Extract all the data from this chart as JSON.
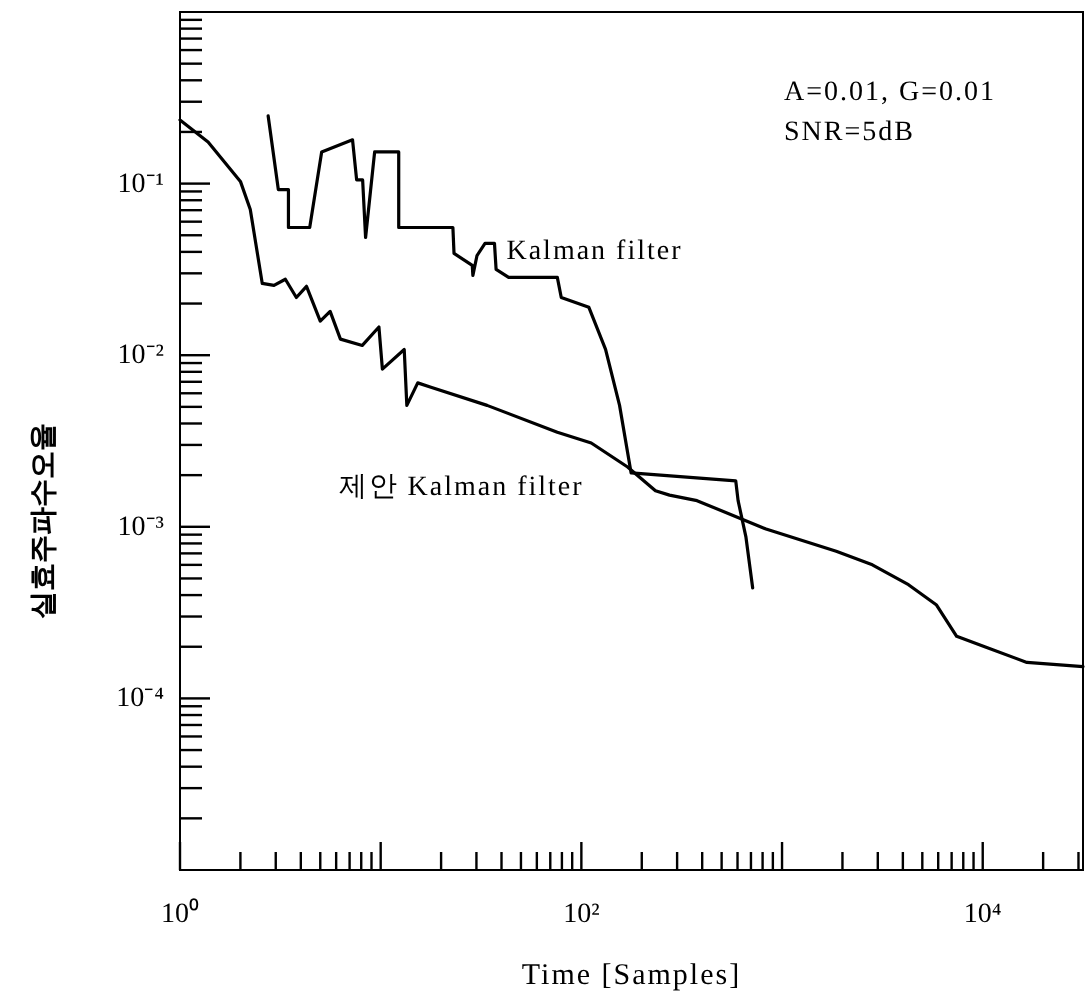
{
  "chart_data": {
    "type": "line",
    "xlabel": "Time [Samples]",
    "ylabel": "실효주파수오율",
    "annotations": [
      "A=0.01, G=0.01",
      "SNR=5dB"
    ],
    "log": "xy",
    "grid": false,
    "legend": false,
    "marker": "none",
    "line_style": "solid",
    "xlim": [
      1,
      31600
    ],
    "ylim": [
      1e-05,
      1
    ],
    "xticks": [
      {
        "value": 1,
        "label": "10⁰"
      },
      {
        "value": 10,
        "label": null
      },
      {
        "value": 100,
        "label": "10²"
      },
      {
        "value": 1000,
        "label": null
      },
      {
        "value": 10000,
        "label": "10⁴"
      },
      {
        "value": 2,
        "label": null
      },
      {
        "value": 3,
        "label": null
      },
      {
        "value": 4,
        "label": null
      },
      {
        "value": 5,
        "label": null
      },
      {
        "value": 6,
        "label": null
      },
      {
        "value": 7,
        "label": null
      },
      {
        "value": 8,
        "label": null
      },
      {
        "value": 9,
        "label": null
      },
      {
        "value": 20,
        "label": null
      },
      {
        "value": 30,
        "label": null
      },
      {
        "value": 40,
        "label": null
      },
      {
        "value": 50,
        "label": null
      },
      {
        "value": 60,
        "label": null
      },
      {
        "value": 70,
        "label": null
      },
      {
        "value": 80,
        "label": null
      },
      {
        "value": 90,
        "label": null
      },
      {
        "value": 200,
        "label": null
      },
      {
        "value": 300,
        "label": null
      },
      {
        "value": 400,
        "label": null
      },
      {
        "value": 500,
        "label": null
      },
      {
        "value": 600,
        "label": null
      },
      {
        "value": 700,
        "label": null
      },
      {
        "value": 800,
        "label": null
      },
      {
        "value": 900,
        "label": null
      },
      {
        "value": 2000,
        "label": null
      },
      {
        "value": 3000,
        "label": null
      },
      {
        "value": 4000,
        "label": null
      },
      {
        "value": 5000,
        "label": null
      },
      {
        "value": 6000,
        "label": null
      },
      {
        "value": 7000,
        "label": null
      },
      {
        "value": 8000,
        "label": null
      },
      {
        "value": 9000,
        "label": null
      },
      {
        "value": 20000,
        "label": null
      },
      {
        "value": 30000,
        "label": null
      }
    ],
    "yticks": [
      {
        "value": 0.1,
        "label": "10⁻¹"
      },
      {
        "value": 0.01,
        "label": "10⁻²"
      },
      {
        "value": 0.001,
        "label": "10⁻³"
      },
      {
        "value": 0.0001,
        "label": "10⁻⁴"
      },
      {
        "value": 0.2,
        "label": null
      },
      {
        "value": 0.3,
        "label": null
      },
      {
        "value": 0.4,
        "label": null
      },
      {
        "value": 0.5,
        "label": null
      },
      {
        "value": 0.6,
        "label": null
      },
      {
        "value": 0.7,
        "label": null
      },
      {
        "value": 0.8,
        "label": null
      },
      {
        "value": 0.9,
        "label": null
      },
      {
        "value": 0.02,
        "label": null
      },
      {
        "value": 0.03,
        "label": null
      },
      {
        "value": 0.04,
        "label": null
      },
      {
        "value": 0.05,
        "label": null
      },
      {
        "value": 0.06,
        "label": null
      },
      {
        "value": 0.07,
        "label": null
      },
      {
        "value": 0.08,
        "label": null
      },
      {
        "value": 0.09,
        "label": null
      },
      {
        "value": 0.002,
        "label": null
      },
      {
        "value": 0.003,
        "label": null
      },
      {
        "value": 0.004,
        "label": null
      },
      {
        "value": 0.005,
        "label": null
      },
      {
        "value": 0.006,
        "label": null
      },
      {
        "value": 0.007,
        "label": null
      },
      {
        "value": 0.008,
        "label": null
      },
      {
        "value": 0.009,
        "label": null
      },
      {
        "value": 0.0002,
        "label": null
      },
      {
        "value": 0.0003,
        "label": null
      },
      {
        "value": 0.0004,
        "label": null
      },
      {
        "value": 0.0005,
        "label": null
      },
      {
        "value": 0.0006,
        "label": null
      },
      {
        "value": 0.0007,
        "label": null
      },
      {
        "value": 0.0008,
        "label": null
      },
      {
        "value": 0.0009,
        "label": null
      },
      {
        "value": 2e-05,
        "label": null
      },
      {
        "value": 3e-05,
        "label": null
      },
      {
        "value": 4e-05,
        "label": null
      },
      {
        "value": 5e-05,
        "label": null
      },
      {
        "value": 6e-05,
        "label": null
      },
      {
        "value": 7e-05,
        "label": null
      },
      {
        "value": 8e-05,
        "label": null
      },
      {
        "value": 9e-05,
        "label": null
      }
    ],
    "series": [
      {
        "name": "Kalman filter",
        "color": "#000000",
        "x": [
          2.75,
          3.09,
          3.47,
          3.47,
          4.43,
          5.08,
          7.24,
          7.59,
          8.13,
          8.41,
          9.33,
          12.3,
          12.3,
          22.9,
          23.2,
          28.6,
          28.8,
          30.2,
          33.1,
          36.9,
          37.6,
          43.4,
          75.9,
          79.4,
          109,
          132,
          155,
          177,
          588,
          604,
          661,
          714
        ],
        "values": [
          0.248,
          0.0923,
          0.0923,
          0.0555,
          0.0555,
          0.153,
          0.18,
          0.105,
          0.105,
          0.0485,
          0.153,
          0.153,
          0.0555,
          0.0555,
          0.0392,
          0.0334,
          0.0292,
          0.0381,
          0.0448,
          0.0448,
          0.0316,
          0.0284,
          0.0284,
          0.0217,
          0.019,
          0.0108,
          0.0051,
          0.00206,
          0.00185,
          0.00142,
          0.00087,
          0.00044
        ]
      },
      {
        "name": "제안 Kalman filter",
        "color": "#000000",
        "x": [
          1,
          1.38,
          2.0,
          2.24,
          2.57,
          2.94,
          3.35,
          3.8,
          4.27,
          5.0,
          5.6,
          6.3,
          8.1,
          9.8,
          10.2,
          13.1,
          13.5,
          15.3,
          17.8,
          33.9,
          75.9,
          112,
          170,
          234,
          275,
          377,
          832,
          1862,
          2818,
          4266,
          5888,
          7413,
          10233,
          16600,
          31600
        ],
        "values": [
          0.235,
          0.175,
          0.103,
          0.0706,
          0.0262,
          0.0255,
          0.0277,
          0.0217,
          0.0252,
          0.0158,
          0.018,
          0.0124,
          0.0114,
          0.0146,
          0.0083,
          0.0108,
          0.0051,
          0.0069,
          0.0065,
          0.0051,
          0.00356,
          0.00308,
          0.00223,
          0.00162,
          0.00153,
          0.00142,
          0.00097,
          0.00072,
          0.0006,
          0.00046,
          0.00035,
          0.00023,
          0.0002,
          0.000162,
          0.000153
        ]
      }
    ]
  }
}
